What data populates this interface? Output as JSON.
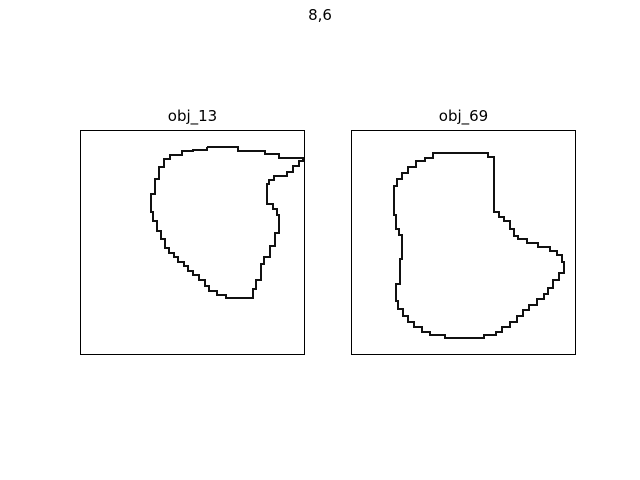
{
  "figure": {
    "suptitle": "8,6"
  },
  "panels": [
    {
      "title": "obj_13",
      "stroke_color": "#111111"
    },
    {
      "title": "obj_69",
      "stroke_color": "#111111"
    }
  ]
}
